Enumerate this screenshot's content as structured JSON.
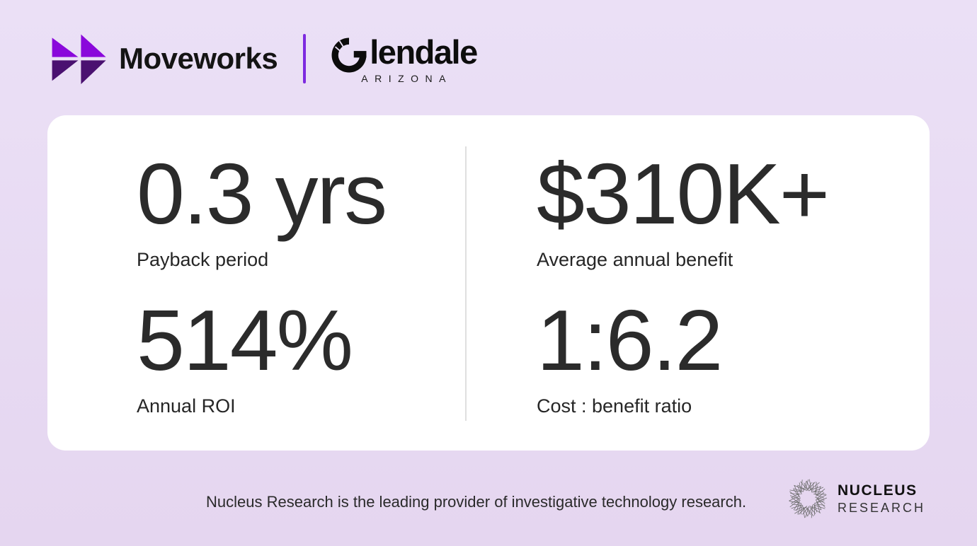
{
  "colors": {
    "background_top": "#EBE0F6",
    "background_bottom": "#E5D6F0",
    "card": "#FFFFFF",
    "accent_purple": "#7D2AE0",
    "moveworks_top": "#8A08DB",
    "moveworks_bottom": "#4A1170",
    "text_dark": "#2B2B2B",
    "divider_gray": "#DFDFDF",
    "nucleus_gray": "#6E6E6E"
  },
  "header": {
    "moveworks_wordmark": "Moveworks",
    "partner": {
      "name": "Glendale",
      "wordmark_tail": "lendale",
      "state": "ARIZONA"
    }
  },
  "stats": [
    {
      "value": "0.3 yrs",
      "label": "Payback period"
    },
    {
      "value": "$310K+",
      "label": "Average annual benefit"
    },
    {
      "value": "514%",
      "label": "Annual ROI"
    },
    {
      "value": "1:6.2",
      "label": "Cost : benefit ratio"
    }
  ],
  "footer": {
    "tagline": "Nucleus Research is the leading provider of investigative technology research.",
    "nucleus_logo": {
      "line1": "NUCLEUS",
      "line2": "RESEARCH"
    }
  }
}
